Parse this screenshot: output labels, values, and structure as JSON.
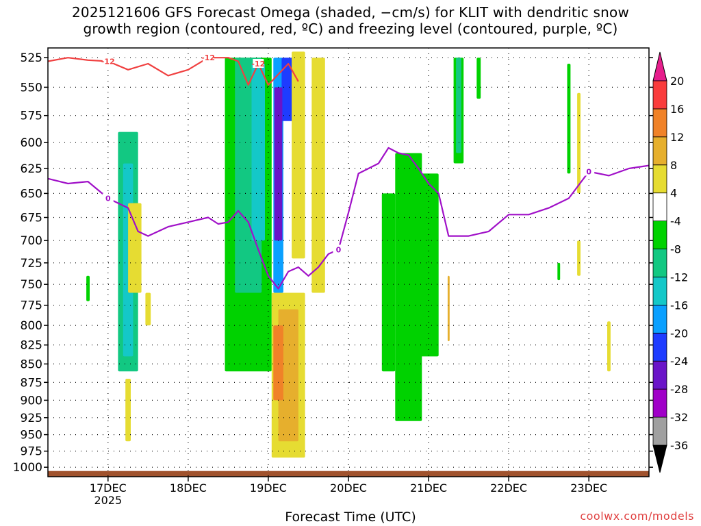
{
  "title_line1": "2025121606 GFS Forecast Omega (shaded, −cm/s) for KLIT with dendritic snow",
  "title_line2": "growth region (contoured, red, ºC) and freezing level (contoured, purple, ºC)",
  "xlabel": "Forecast Time (UTC)",
  "credit": "coolwx.com/models",
  "chart_data": {
    "type": "heatmap",
    "x_ticks": [
      {
        "label": "17DEC",
        "sub": "2025",
        "time": "2025-12-17T00"
      },
      {
        "label": "18DEC",
        "sub": "",
        "time": "2025-12-18T00"
      },
      {
        "label": "19DEC",
        "sub": "",
        "time": "2025-12-19T00"
      },
      {
        "label": "20DEC",
        "sub": "",
        "time": "2025-12-20T00"
      },
      {
        "label": "21DEC",
        "sub": "",
        "time": "2025-12-21T00"
      },
      {
        "label": "22DEC",
        "sub": "",
        "time": "2025-12-22T00"
      },
      {
        "label": "23DEC",
        "sub": "",
        "time": "2025-12-23T00"
      }
    ],
    "xlim": [
      "2025-12-16T06",
      "2025-12-23T18"
    ],
    "y_ticks": [
      525,
      550,
      575,
      600,
      625,
      650,
      675,
      700,
      725,
      750,
      775,
      800,
      825,
      850,
      875,
      900,
      925,
      950,
      975,
      1000
    ],
    "ylim": [
      1015,
      517
    ],
    "y_scale": "log-pressure",
    "grid": true,
    "colorbar": {
      "levels": [
        -36,
        -32,
        -28,
        -24,
        -20,
        -16,
        -12,
        -8,
        -4,
        4,
        8,
        12,
        16,
        20
      ],
      "colors": [
        "#000000",
        "#a0a0a0",
        "#a000c8",
        "#6a14c8",
        "#1e3cff",
        "#0aa0ff",
        "#14c8c8",
        "#12c882",
        "#00d200",
        "#ffffff",
        "#e6dc32",
        "#e6af2d",
        "#f08228",
        "#fa3c3c",
        "#e61e8c"
      ]
    },
    "contour_labels": {
      "dgz": "-12",
      "freezing": "0"
    },
    "contour_colors": {
      "dgz": "#f04040",
      "freezing": "#a010c8",
      "terrain": "#a0522d"
    },
    "freezing_level": {
      "x": [
        "2025-12-16T06",
        "2025-12-16T12",
        "2025-12-16T18",
        "2025-12-17T00",
        "2025-12-17T06",
        "2025-12-17T09",
        "2025-12-17T12",
        "2025-12-17T18",
        "2025-12-18T00",
        "2025-12-18T06",
        "2025-12-18T09",
        "2025-12-18T12",
        "2025-12-18T15",
        "2025-12-18T18",
        "2025-12-18T21",
        "2025-12-19T00",
        "2025-12-19T03",
        "2025-12-19T06",
        "2025-12-19T09",
        "2025-12-19T12",
        "2025-12-19T15",
        "2025-12-19T18",
        "2025-12-19T21",
        "2025-12-20T00",
        "2025-12-20T03",
        "2025-12-20T06",
        "2025-12-20T09",
        "2025-12-20T12",
        "2025-12-20T15",
        "2025-12-20T18",
        "2025-12-20T21",
        "2025-12-21T00",
        "2025-12-21T03",
        "2025-12-21T06",
        "2025-12-21T12",
        "2025-12-21T18",
        "2025-12-22T00",
        "2025-12-22T06",
        "2025-12-22T12",
        "2025-12-22T18",
        "2025-12-23T00",
        "2025-12-23T06",
        "2025-12-23T12",
        "2025-12-23T18"
      ],
      "y": [
        635,
        640,
        638,
        655,
        665,
        690,
        695,
        685,
        680,
        675,
        682,
        680,
        668,
        680,
        710,
        740,
        755,
        735,
        730,
        740,
        730,
        715,
        710,
        670,
        630,
        625,
        620,
        605,
        610,
        612,
        625,
        640,
        650,
        695,
        695,
        690,
        672,
        672,
        665,
        655,
        628,
        632,
        625,
        622
      ]
    },
    "dgz_level": {
      "x": [
        "2025-12-16T06",
        "2025-12-16T12",
        "2025-12-16T18",
        "2025-12-17T00",
        "2025-12-17T06",
        "2025-12-17T12",
        "2025-12-17T18",
        "2025-12-18T00",
        "2025-12-18T06",
        "2025-12-18T12",
        "2025-12-18T15",
        "2025-12-18T18",
        "2025-12-18T21",
        "2025-12-19T00",
        "2025-12-19T06",
        "2025-12-19T09"
      ],
      "y": [
        528,
        525,
        527,
        528,
        535,
        530,
        540,
        535,
        525,
        525,
        528,
        548,
        530,
        548,
        530,
        545
      ]
    },
    "terrain_pressure_top": 1006
  }
}
